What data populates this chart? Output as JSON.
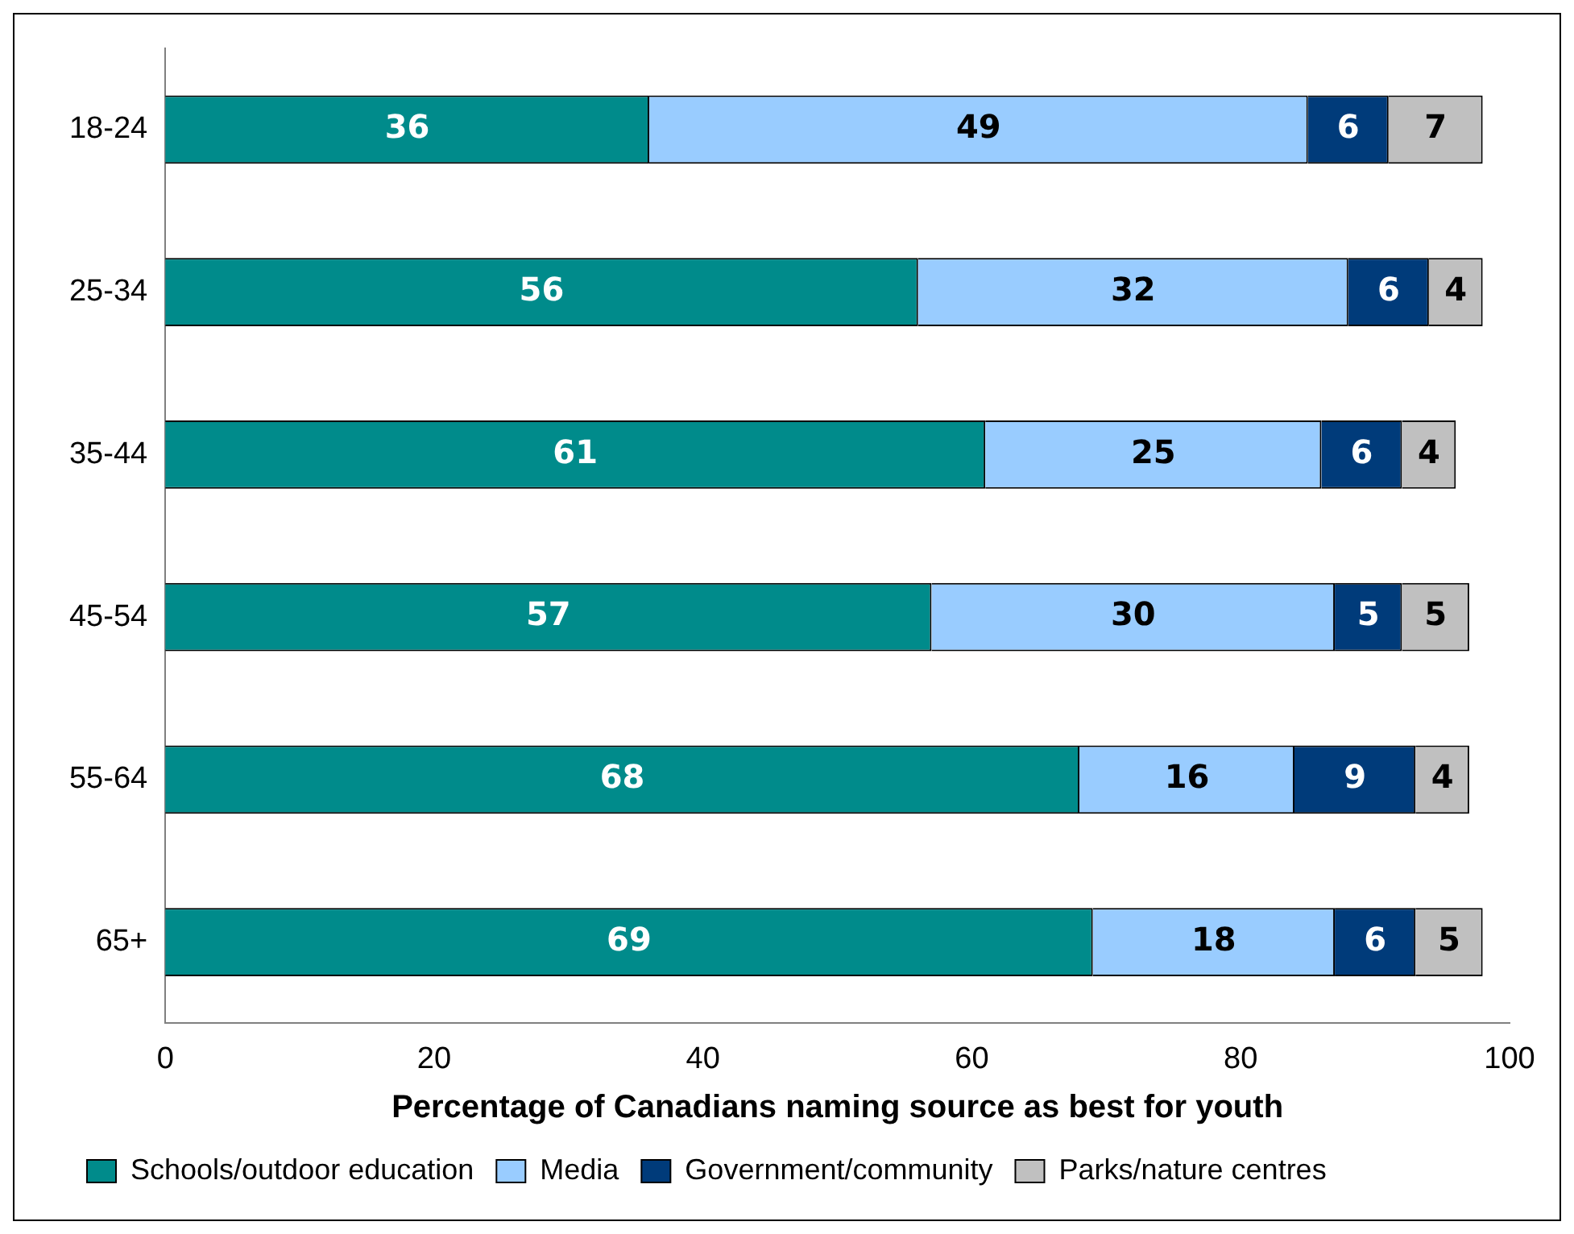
{
  "chart_data": {
    "type": "bar",
    "orientation": "horizontal",
    "stacked": true,
    "categories": [
      "18-24",
      "25-34",
      "35-44",
      "45-54",
      "55-64",
      "65+"
    ],
    "series": [
      {
        "name": "Schools/outdoor education",
        "color": "#008b8b",
        "values": [
          36,
          56,
          61,
          57,
          68,
          69
        ]
      },
      {
        "name": "Media",
        "color": "#99ccff",
        "values": [
          49,
          32,
          25,
          30,
          16,
          18
        ]
      },
      {
        "name": "Government/community",
        "color": "#003b7a",
        "values": [
          6,
          6,
          6,
          5,
          9,
          6
        ]
      },
      {
        "name": "Parks/nature centres",
        "color": "#c0c0c0",
        "values": [
          7,
          4,
          4,
          5,
          4,
          5
        ]
      }
    ],
    "xlim": [
      0,
      100
    ],
    "xticks": [
      0,
      20,
      40,
      60,
      80,
      100
    ],
    "xlabel": "Percentage of Canadians naming source as best for youth",
    "grid": false,
    "legend": "bottom",
    "data_labels": true
  }
}
